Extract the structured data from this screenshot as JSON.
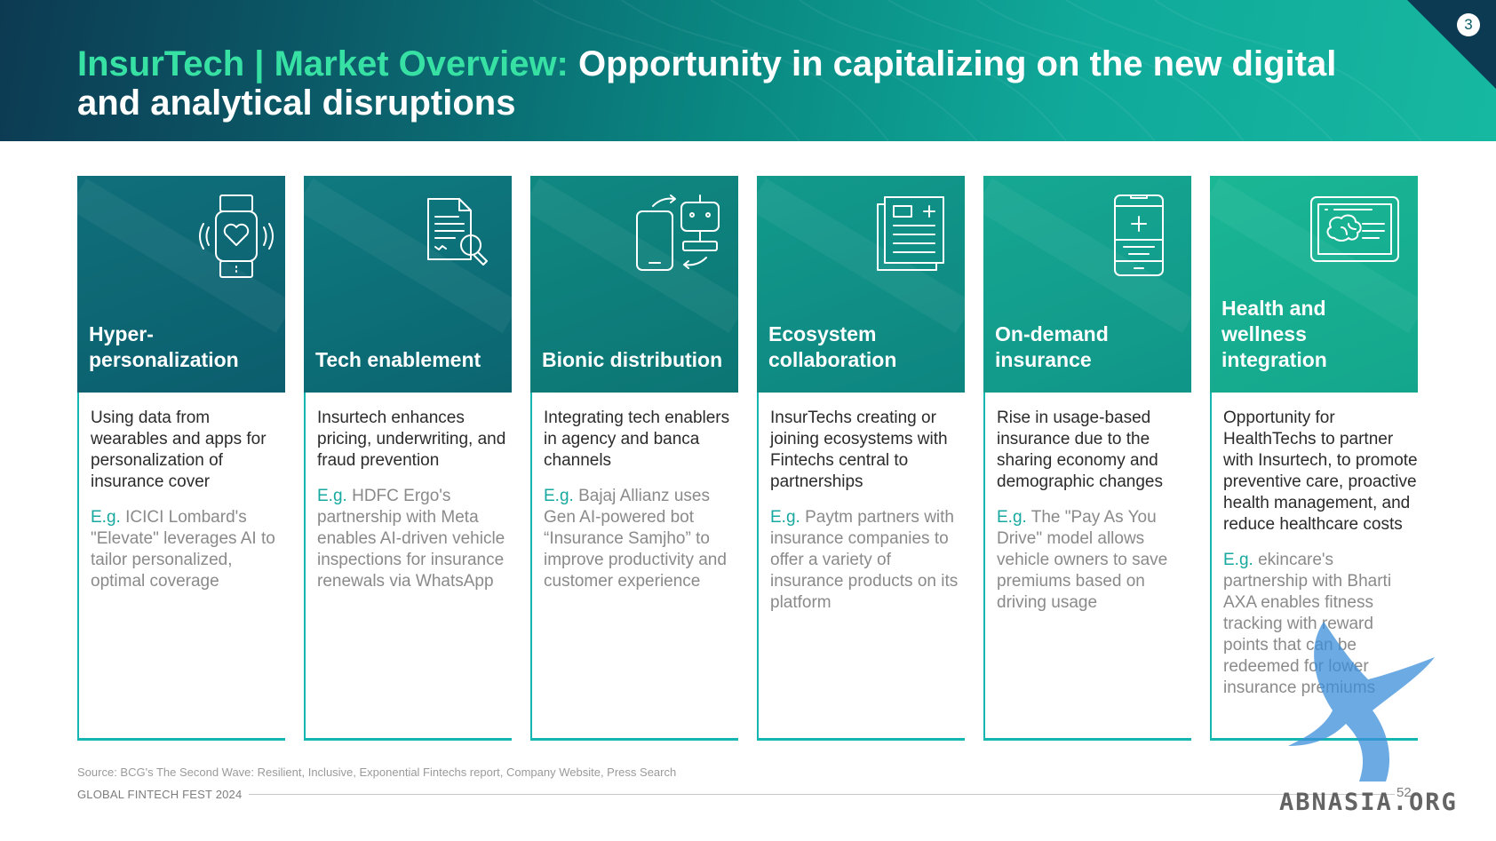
{
  "header": {
    "page_badge": "3",
    "title_accent": "InsurTech | Market Overview:",
    "title_rest": " Opportunity in capitalizing on the new digital and analytical disruptions"
  },
  "cards": [
    {
      "title": "Hyper-personalization",
      "icon": "smartwatch-heart-icon",
      "description": "Using data from wearables and apps for personalization of insurance cover",
      "example_prefix": "E.g.",
      "example": " ICICI Lombard's \"Elevate\" leverages AI to tailor personalized, optimal coverage"
    },
    {
      "title": "Tech enablement",
      "icon": "document-search-icon",
      "description": "Insurtech enhances pricing, underwriting, and fraud prevention",
      "example_prefix": "E.g.",
      "example": " HDFC Ergo's partnership with Meta enables AI-driven vehicle inspections for insurance renewals via WhatsApp"
    },
    {
      "title": "Bionic distribution",
      "icon": "phone-robot-exchange-icon",
      "description": "Integrating tech enablers in agency and banca channels",
      "example_prefix": "E.g.",
      "example": " Bajaj Allianz uses Gen AI-powered bot “Insurance Samjho” to improve productivity and customer experience"
    },
    {
      "title": "Ecosystem collaboration",
      "icon": "stacked-documents-icon",
      "description": "InsurTechs creating or joining ecosystems with Fintechs central to partnerships",
      "example_prefix": "E.g.",
      "example": " Paytm partners with insurance companies to offer a variety of insurance products on its platform"
    },
    {
      "title": "On-demand insurance",
      "icon": "mobile-plus-icon",
      "description": "Rise in usage-based insurance due to the sharing economy and demographic changes",
      "example_prefix": "E.g.",
      "example": " The \"Pay As You Drive\" model allows vehicle owners to save premiums based on driving usage"
    },
    {
      "title": "Health and wellness integration",
      "icon": "monitor-brain-icon",
      "description": "Opportunity for HealthTechs to partner with Insurtech, to promote preventive care, proactive health management, and reduce healthcare costs",
      "example_prefix": "E.g.",
      "example": " ekincare's partnership with Bharti AXA enables fitness tracking with reward points that can be redeemed for lower insurance premiums"
    }
  ],
  "footer": {
    "source": "Source: BCG's The Second Wave: Resilient, Inclusive, Exponential Fintechs report, Company Website, Press Search",
    "label": "GLOBAL FINTECH FEST 2024",
    "page_number": "52",
    "watermark": "ABNASIA.ORG"
  },
  "colors": {
    "accent_green": "#37e0a3",
    "teal_border": "#16b6b0",
    "example_prefix": "#17a9a0"
  }
}
